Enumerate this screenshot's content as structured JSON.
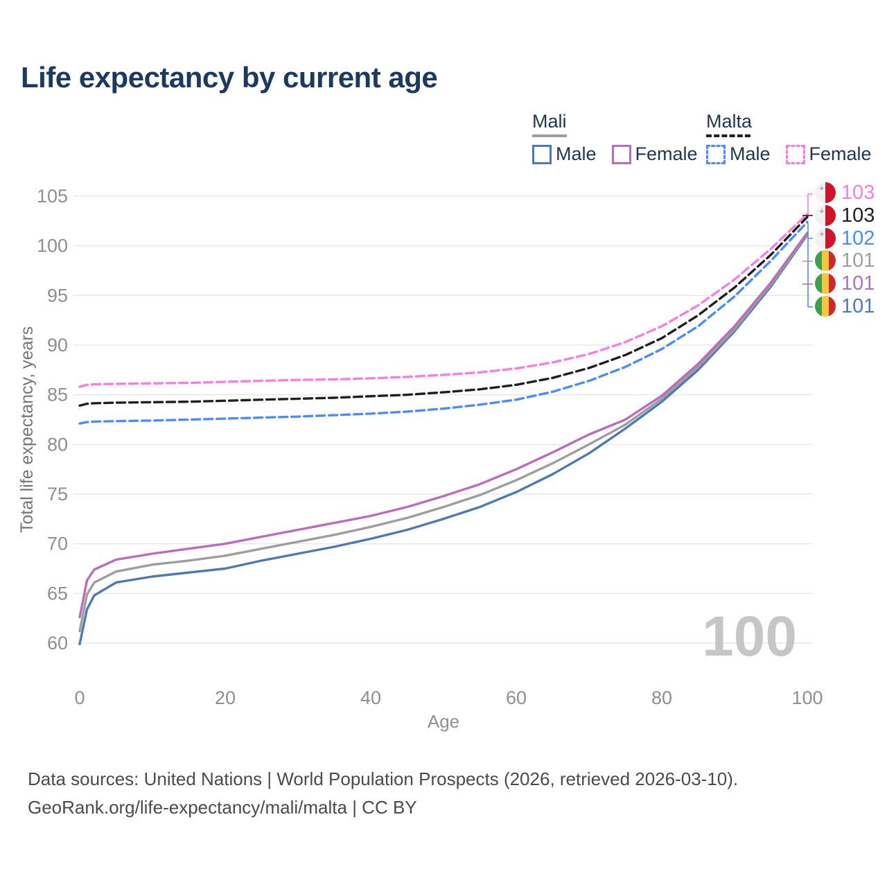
{
  "page": {
    "title": "Life expectancy by current age",
    "background": "#ffffff"
  },
  "legend": {
    "groups": [
      {
        "label": "Mali",
        "line_style": "solid",
        "line_color": "#9e9e9e",
        "items": [
          {
            "label": "Male",
            "color": "#4d79b6",
            "dashed": false
          },
          {
            "label": "Female",
            "color": "#bd6cbd",
            "dashed": false
          }
        ]
      },
      {
        "label": "Malta",
        "line_style": "dashed",
        "line_color": "#1f1f1f",
        "items": [
          {
            "label": "Male",
            "color": "#4a8df6",
            "dashed": true
          },
          {
            "label": "Female",
            "color": "#fc7de2",
            "dashed": true
          }
        ]
      }
    ]
  },
  "chart_data": {
    "type": "line",
    "title": "Life expectancy by current age",
    "xlabel": "Age",
    "ylabel": "Total life expectancy, years",
    "xlim": [
      0,
      100
    ],
    "ylim": [
      58,
      106
    ],
    "xticks": [
      0,
      20,
      40,
      60,
      80,
      100
    ],
    "yticks": [
      60,
      65,
      70,
      75,
      80,
      85,
      90,
      95,
      100,
      105
    ],
    "grid": "horizontal",
    "legend_position": "top-right",
    "watermark": "100",
    "x": [
      0,
      1,
      2,
      5,
      10,
      15,
      20,
      25,
      30,
      35,
      40,
      45,
      50,
      55,
      60,
      65,
      70,
      75,
      80,
      85,
      90,
      95,
      100
    ],
    "series": [
      {
        "id": "malta-female",
        "name": "Malta Female",
        "country": "Malta",
        "sex": "Female",
        "color": "#fc7de2",
        "dashed": true,
        "end_label": "103",
        "values": [
          85.8,
          86.0,
          86.05,
          86.1,
          86.15,
          86.2,
          86.3,
          86.4,
          86.5,
          86.55,
          86.65,
          86.8,
          87.0,
          87.25,
          87.65,
          88.25,
          89.1,
          90.3,
          91.9,
          94.0,
          96.6,
          99.7,
          103.2
        ]
      },
      {
        "id": "malta-all",
        "name": "Malta",
        "country": "Malta",
        "sex": "All",
        "color": "#1f1f1f",
        "dashed": true,
        "end_label": "103",
        "values": [
          83.9,
          84.1,
          84.15,
          84.2,
          84.25,
          84.3,
          84.4,
          84.5,
          84.6,
          84.7,
          84.85,
          85.0,
          85.25,
          85.55,
          86.0,
          86.7,
          87.7,
          89.0,
          90.7,
          93.0,
          95.8,
          99.1,
          102.9
        ]
      },
      {
        "id": "malta-male",
        "name": "Malta Male",
        "country": "Malta",
        "sex": "Male",
        "color": "#4a8df6",
        "dashed": true,
        "end_label": "102",
        "values": [
          82.1,
          82.25,
          82.3,
          82.35,
          82.4,
          82.5,
          82.6,
          82.7,
          82.8,
          82.95,
          83.1,
          83.3,
          83.6,
          84.0,
          84.5,
          85.3,
          86.4,
          87.8,
          89.6,
          91.9,
          94.9,
          98.5,
          102.4
        ]
      },
      {
        "id": "mali-male",
        "name": "Mali Male",
        "country": "Mali",
        "sex": "Male",
        "color": "#4d79b6",
        "dashed": false,
        "end_label": "101",
        "values": [
          59.9,
          63.4,
          64.8,
          66.1,
          66.7,
          67.1,
          67.5,
          68.3,
          69.0,
          69.7,
          70.5,
          71.4,
          72.5,
          73.7,
          75.2,
          77.0,
          79.1,
          81.6,
          84.3,
          87.5,
          91.4,
          95.9,
          101.1
        ]
      },
      {
        "id": "mali-all",
        "name": "Mali",
        "country": "Mali",
        "sex": "All",
        "color": "#9e9e9e",
        "dashed": false,
        "end_label": "101",
        "values": [
          61.2,
          64.9,
          66.1,
          67.2,
          67.9,
          68.3,
          68.8,
          69.5,
          70.2,
          70.9,
          71.7,
          72.6,
          73.7,
          74.9,
          76.4,
          78.1,
          80.0,
          82.0,
          84.6,
          87.8,
          91.6,
          96.1,
          101.2
        ]
      },
      {
        "id": "mali-female",
        "name": "Mali Female",
        "country": "Mali",
        "sex": "Female",
        "color": "#bd6cbd",
        "dashed": false,
        "end_label": "101",
        "values": [
          62.6,
          66.3,
          67.4,
          68.4,
          69.0,
          69.5,
          70.0,
          70.7,
          71.4,
          72.1,
          72.8,
          73.7,
          74.8,
          76.0,
          77.5,
          79.2,
          81.0,
          82.5,
          84.9,
          88.1,
          91.9,
          96.3,
          101.3
        ]
      }
    ],
    "end_labels": [
      {
        "text": "103",
        "color": "#fc7de2",
        "flag": "malta",
        "series": "malta-female"
      },
      {
        "text": "103",
        "color": "#1f1f1f",
        "flag": "malta",
        "series": "malta-all"
      },
      {
        "text": "102",
        "color": "#4a8df6",
        "flag": "malta",
        "series": "malta-male"
      },
      {
        "text": "101",
        "color": "#9e9e9e",
        "flag": "mali",
        "series": "mali-all"
      },
      {
        "text": "101",
        "color": "#ab74b8",
        "flag": "mali",
        "series": "mali-female"
      },
      {
        "text": "101",
        "color": "#4d79b6",
        "flag": "mali",
        "series": "mali-male"
      }
    ]
  },
  "footer": {
    "line1": "Data sources: United Nations | World Population Prospects (2026, retrieved 2026-03-10).",
    "line2": "GeoRank.org/life-expectancy/mali/malta | CC BY"
  }
}
